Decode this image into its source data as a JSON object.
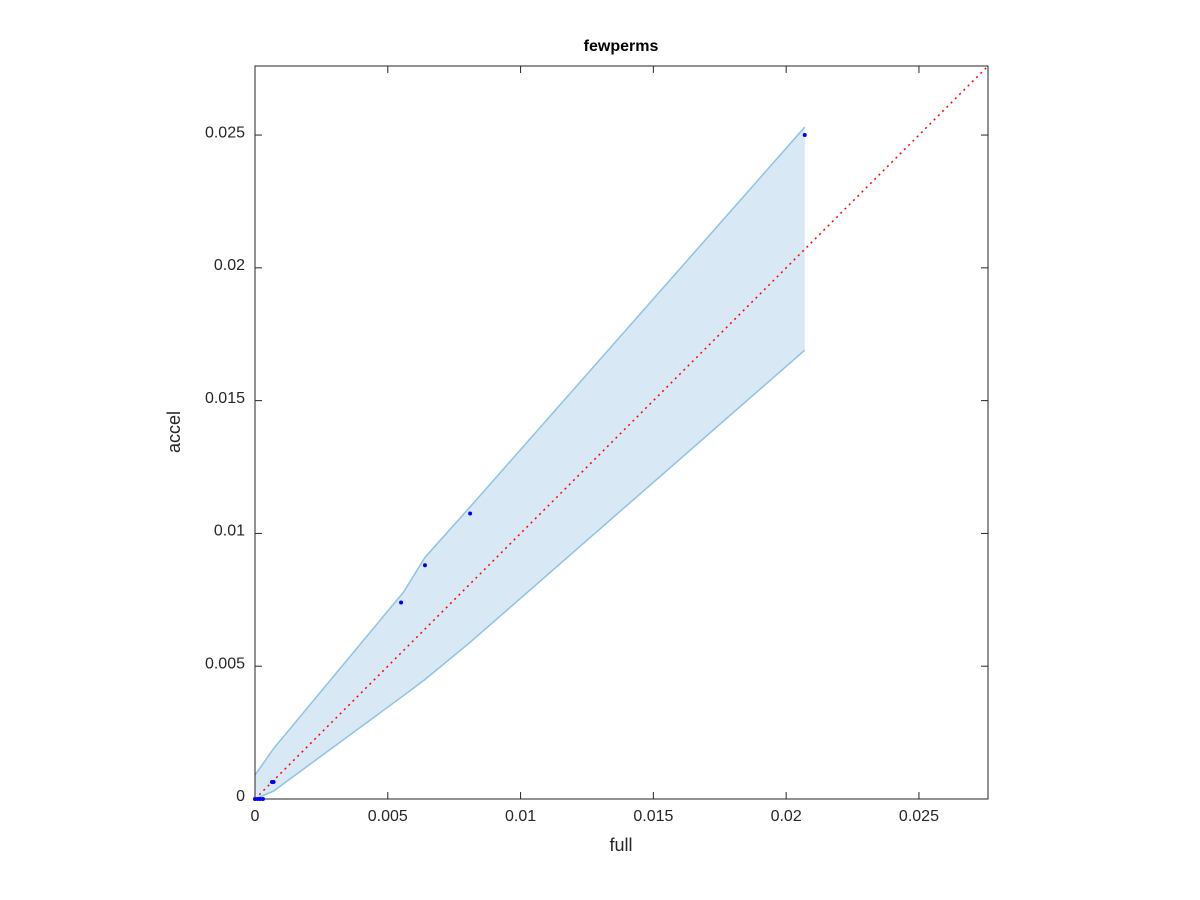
{
  "chart_data": {
    "type": "scatter",
    "title": "fewperms",
    "x_label": "full",
    "y_label": "accel",
    "x": [
      0,
      0.0001,
      0.0002,
      0.0003,
      0.00064,
      0.0007,
      0.0055,
      0.0064,
      0.0081,
      0.0207
    ],
    "values": [
      0,
      0,
      0,
      0,
      0.00064,
      0.00064,
      0.0074,
      0.0088,
      0.01075,
      0.025
    ],
    "color": "#0000ff",
    "band": {
      "x": [
        0,
        0.0007,
        0.0056,
        0.0064,
        0.0081,
        0.0207
      ],
      "upper": [
        0.0009,
        0.0019,
        0.0078,
        0.0091,
        0.011,
        0.0253
      ],
      "lower": [
        0,
        0.0003,
        0.0039,
        0.0045,
        0.0059,
        0.0169
      ],
      "color": "#8fc3e4",
      "fill": "#d9e8f5"
    },
    "diagonal": {
      "x": [
        0,
        0.0276
      ],
      "y": [
        0,
        0.0276
      ],
      "color": "#ff0000"
    },
    "xlim": [
      0,
      0.0276
    ],
    "ylim": [
      0,
      0.0276
    ],
    "xticks": [
      0,
      0.005,
      0.01,
      0.015,
      0.02,
      0.025
    ],
    "yticks": [
      0,
      0.005,
      0.01,
      0.015,
      0.02,
      0.025
    ]
  }
}
